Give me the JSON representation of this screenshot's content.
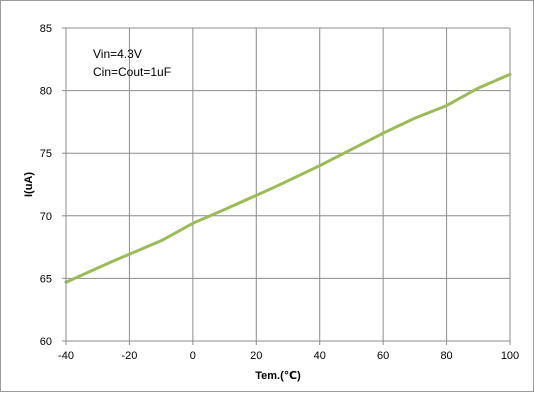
{
  "chart_data": {
    "type": "line",
    "title": "",
    "xlabel": "Tem.(℃)",
    "ylabel": "I(uA)",
    "xlim": [
      -40,
      100
    ],
    "ylim": [
      60,
      85
    ],
    "xticks": [
      -40,
      -20,
      0,
      20,
      40,
      60,
      80,
      100
    ],
    "yticks": [
      60,
      65,
      70,
      75,
      80,
      85
    ],
    "grid": true,
    "legend": "none",
    "annotations": [
      "Vin=4.3V",
      "Cin=Cout=1uF"
    ],
    "series": [
      {
        "color": "#9bbb59",
        "x": [
          -40,
          -25,
          -10,
          0,
          10,
          25,
          40,
          50,
          60,
          70,
          80,
          90,
          100
        ],
        "y": [
          64.7,
          66.4,
          68.0,
          69.4,
          70.5,
          72.2,
          74.0,
          75.3,
          76.6,
          77.8,
          78.8,
          80.2,
          81.3
        ]
      }
    ]
  }
}
